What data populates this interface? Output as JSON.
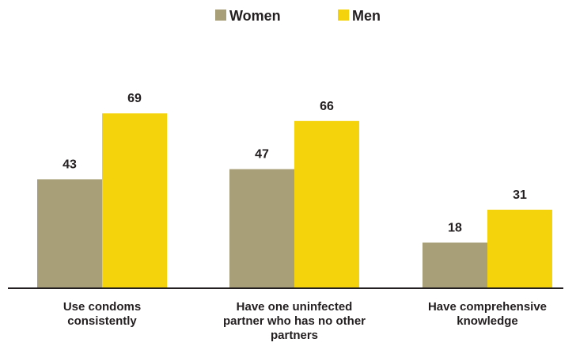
{
  "chart_data": {
    "type": "bar",
    "categories": [
      [
        "Use condoms",
        "consistently"
      ],
      [
        "Have one uninfected",
        "partner who has no other",
        "partners"
      ],
      [
        "Have comprehensive",
        "knowledge"
      ]
    ],
    "series": [
      {
        "name": "Women",
        "values": [
          43,
          47,
          18
        ],
        "color": "#a89f78"
      },
      {
        "name": "Men",
        "values": [
          69,
          66,
          31
        ],
        "color": "#f5d30c"
      }
    ],
    "ylim": [
      0,
      80
    ],
    "grid": false,
    "legend": "top-center",
    "show_data_labels": true
  }
}
